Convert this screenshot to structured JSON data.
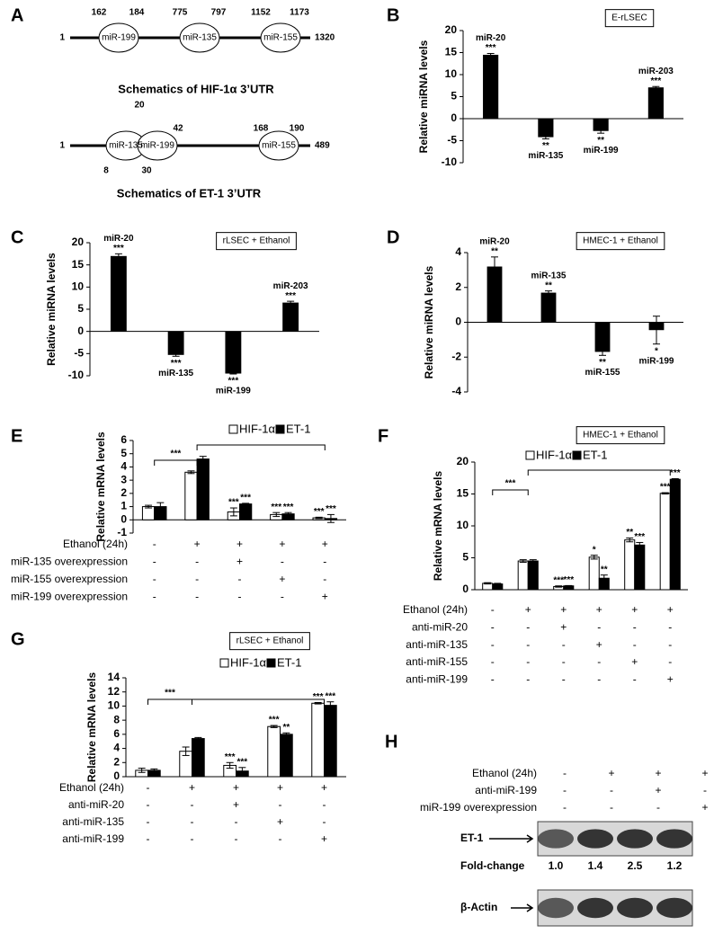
{
  "schematic": {
    "panel": "A",
    "utrs": [
      {
        "title": "Schematics of HIF-1α 3’UTR",
        "start": 1,
        "end": 1320,
        "sites": [
          {
            "name": "miR-199",
            "from": 162,
            "to": 184
          },
          {
            "name": "miR-135",
            "from": 775,
            "to": 797
          },
          {
            "name": "miR-155",
            "from": 1152,
            "to": 1173
          }
        ]
      },
      {
        "title": "Schematics of ET-1 3’UTR",
        "start": 1,
        "end": 489,
        "sites": [
          {
            "name": "miR-135",
            "from": 8,
            "to": 20
          },
          {
            "name": "miR-199",
            "from": 30,
            "to": 42
          },
          {
            "name": "miR-155",
            "from": 168,
            "to": 190
          }
        ]
      }
    ]
  },
  "chart_data": [
    {
      "type": "bar",
      "panel": "B",
      "title": "E-rLSEC",
      "ylabel": "Relative miRNA levels",
      "ylim": [
        -10,
        20
      ],
      "yticks": [
        -10,
        -5,
        0,
        5,
        10,
        15,
        20
      ],
      "color": "#000000",
      "categories": [
        "miR-20",
        "miR-135",
        "miR-199",
        "miR-203"
      ],
      "values": [
        14.5,
        -4.2,
        -2.8,
        7.1
      ],
      "errors": [
        0.3,
        0.4,
        0.5,
        0.2
      ],
      "significance": [
        "***",
        "**",
        "**",
        "***"
      ]
    },
    {
      "type": "bar",
      "panel": "C",
      "title": "rLSEC + Ethanol",
      "ylabel": "Relative miRNA levels",
      "ylim": [
        -10,
        20
      ],
      "yticks": [
        -10,
        -5,
        0,
        5,
        10,
        15,
        20
      ],
      "color": "#000000",
      "categories": [
        "miR-20",
        "miR-135",
        "miR-199",
        "miR-203"
      ],
      "values": [
        17.0,
        -5.3,
        -9.5,
        6.5
      ],
      "errors": [
        0.5,
        0.3,
        0.1,
        0.3
      ],
      "significance": [
        "***",
        "***",
        "***",
        "***"
      ]
    },
    {
      "type": "bar",
      "panel": "D",
      "title": "HMEC-1 + Ethanol",
      "ylabel": "Relative miRNA levels",
      "ylim": [
        -4,
        4
      ],
      "yticks": [
        -4,
        -2,
        0,
        2,
        4
      ],
      "color": "#000000",
      "categories": [
        "miR-20",
        "miR-135",
        "miR-155",
        "miR-199"
      ],
      "values": [
        3.2,
        1.7,
        -1.7,
        -0.45
      ],
      "errors": [
        0.55,
        0.1,
        0.2,
        0.8
      ],
      "significance": [
        "**",
        "**",
        "**",
        "*"
      ]
    },
    {
      "type": "grouped-bar",
      "panel": "E",
      "ylabel": "Relative mRNA levels",
      "ylim": [
        -1,
        6
      ],
      "yticks": [
        -1,
        0,
        1,
        2,
        3,
        4,
        5,
        6
      ],
      "comparison_label": "***",
      "series": [
        {
          "name": "HIF-1α",
          "color": "#ffffff",
          "values": [
            1.0,
            3.6,
            0.6,
            0.4,
            0.15
          ],
          "errors": [
            0.1,
            0.1,
            0.3,
            0.15,
            0.05
          ],
          "significance": [
            null,
            null,
            "***",
            "***",
            "***"
          ]
        },
        {
          "name": "ET-1",
          "color": "#000000",
          "values": [
            1.0,
            4.6,
            1.2,
            0.45,
            0.1
          ],
          "errors": [
            0.3,
            0.2,
            0.05,
            0.1,
            0.3
          ],
          "significance": [
            null,
            null,
            "***",
            "***",
            "***"
          ]
        }
      ],
      "conditions": [
        {
          "label": "Ethanol (24h)",
          "values": [
            "-",
            "+",
            "+",
            "+",
            "+"
          ]
        },
        {
          "label": "miR-135 overexpression",
          "values": [
            "-",
            "-",
            "+",
            "-",
            "-"
          ]
        },
        {
          "label": "miR-155 overexpression",
          "values": [
            "-",
            "-",
            "-",
            "+",
            "-"
          ]
        },
        {
          "label": "miR-199 overexpression",
          "values": [
            "-",
            "-",
            "-",
            "-",
            "+"
          ]
        }
      ]
    },
    {
      "type": "grouped-bar",
      "panel": "F",
      "title": "HMEC-1 + Ethanol",
      "ylabel": "Relative mRNA levels",
      "ylim": [
        0,
        20
      ],
      "yticks": [
        0,
        5,
        10,
        15,
        20
      ],
      "comparison_label": "***",
      "series": [
        {
          "name": "HIF-1α",
          "color": "#ffffff",
          "values": [
            1.0,
            4.5,
            0.5,
            5.1,
            7.8,
            15.1
          ],
          "errors": [
            0.1,
            0.2,
            0.1,
            0.3,
            0.3,
            0.1
          ],
          "significance": [
            null,
            null,
            "***",
            "*",
            "**",
            "***"
          ]
        },
        {
          "name": "ET-1",
          "color": "#000000",
          "values": [
            0.9,
            4.5,
            0.6,
            1.8,
            7.0,
            17.3
          ],
          "errors": [
            0.1,
            0.2,
            0.05,
            0.5,
            0.4,
            0.1
          ],
          "significance": [
            null,
            null,
            "***",
            "**",
            "***",
            "***"
          ]
        }
      ],
      "conditions": [
        {
          "label": "Ethanol (24h)",
          "values": [
            "-",
            "+",
            "+",
            "+",
            "+",
            "+"
          ]
        },
        {
          "label": "anti-miR-20",
          "values": [
            "-",
            "-",
            "+",
            "-",
            "-",
            "-"
          ]
        },
        {
          "label": "anti-miR-135",
          "values": [
            "-",
            "-",
            "-",
            "+",
            "-",
            "-"
          ]
        },
        {
          "label": "anti-miR-155",
          "values": [
            "-",
            "-",
            "-",
            "-",
            "+",
            "-"
          ]
        },
        {
          "label": "anti-miR-199",
          "values": [
            "-",
            "-",
            "-",
            "-",
            "-",
            "+"
          ]
        }
      ]
    },
    {
      "type": "grouped-bar",
      "panel": "G",
      "title": "rLSEC + Ethanol",
      "ylabel": "Relative mRNA levels",
      "ylim": [
        0,
        14
      ],
      "yticks": [
        0,
        2,
        4,
        6,
        8,
        10,
        12,
        14
      ],
      "comparison_label": "***",
      "series": [
        {
          "name": "HIF-1α",
          "color": "#ffffff",
          "values": [
            0.9,
            3.6,
            1.6,
            7.1,
            10.4
          ],
          "errors": [
            0.3,
            0.6,
            0.4,
            0.15,
            0.1
          ],
          "significance": [
            null,
            null,
            "***",
            "***",
            "***"
          ]
        },
        {
          "name": "ET-1",
          "color": "#000000",
          "values": [
            0.9,
            5.4,
            0.8,
            6.0,
            10.1
          ],
          "errors": [
            0.2,
            0.15,
            0.5,
            0.2,
            0.5
          ],
          "significance": [
            null,
            null,
            "***",
            "**",
            "***"
          ]
        }
      ],
      "conditions": [
        {
          "label": "Ethanol (24h)",
          "values": [
            "-",
            "+",
            "+",
            "+",
            "+"
          ]
        },
        {
          "label": "anti-miR-20",
          "values": [
            "-",
            "-",
            "+",
            "-",
            "-"
          ]
        },
        {
          "label": "anti-miR-135",
          "values": [
            "-",
            "-",
            "-",
            "+",
            "-"
          ]
        },
        {
          "label": "anti-miR-199",
          "values": [
            "-",
            "-",
            "-",
            "-",
            "+"
          ]
        }
      ]
    }
  ],
  "blot": {
    "panel": "H",
    "conditions": [
      {
        "label": "Ethanol (24h)",
        "values": [
          "-",
          "+",
          "+",
          "+"
        ]
      },
      {
        "label": "anti-miR-199",
        "values": [
          "-",
          "-",
          "+",
          "-"
        ]
      },
      {
        "label": "miR-199 overexpression",
        "values": [
          "-",
          "-",
          "-",
          "+"
        ]
      }
    ],
    "target": {
      "label": "ET-1",
      "fold_change_label": "Fold-change",
      "fold_change": [
        "1.0",
        "1.4",
        "2.5",
        "1.2"
      ]
    },
    "control": {
      "label": "β-Actin"
    }
  }
}
